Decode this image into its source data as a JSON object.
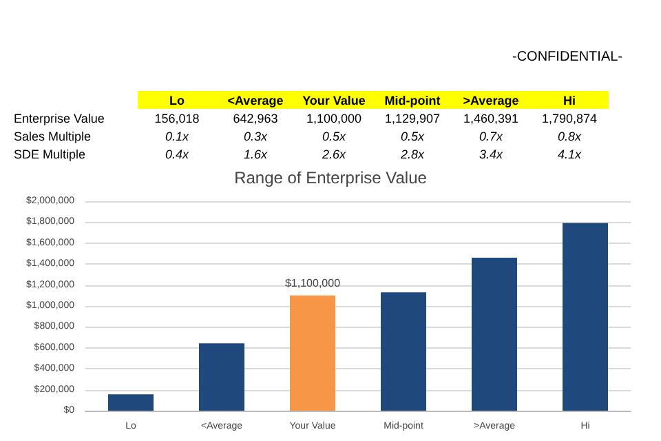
{
  "chart_data": {
    "type": "bar",
    "title": "Range of Enterprise Value",
    "categories": [
      "Lo",
      "<Average",
      "Your Value",
      "Mid-point",
      ">Average",
      "Hi"
    ],
    "values": [
      156018,
      642963,
      1100000,
      1129907,
      1460391,
      1790874
    ],
    "colors": [
      "#1f497d",
      "#1f497d",
      "#f79646",
      "#1f497d",
      "#1f497d",
      "#1f497d"
    ],
    "ylim": [
      0,
      2000000
    ],
    "yticks": [
      {
        "value": 0,
        "label": "$0"
      },
      {
        "value": 200000,
        "label": "$200,000"
      },
      {
        "value": 400000,
        "label": "$400,000"
      },
      {
        "value": 600000,
        "label": "$600,000"
      },
      {
        "value": 800000,
        "label": "$800,000"
      },
      {
        "value": 1000000,
        "label": "$1,000,000"
      },
      {
        "value": 1200000,
        "label": "$1,200,000"
      },
      {
        "value": 1400000,
        "label": "$1,400,000"
      },
      {
        "value": 1600000,
        "label": "$1,600,000"
      },
      {
        "value": 1800000,
        "label": "$1,800,000"
      },
      {
        "value": 2000000,
        "label": "$2,000,000"
      }
    ],
    "grid": "y",
    "value_labels": [
      null,
      null,
      "$1,100,000",
      null,
      null,
      null
    ],
    "annotations": [
      "-CONFIDENTIAL-",
      "Enterprise Value",
      "156,018",
      "642,963",
      "1,100,000",
      "1,129,907",
      "1,460,391",
      "1,790,874",
      "Sales Multiple",
      "0.1x",
      "0.3x",
      "0.5x",
      "0.5x",
      "0.7x",
      "0.8x",
      "SDE Multiple",
      "0.4x",
      "1.6x",
      "2.6x",
      "2.8x",
      "3.4x",
      "4.1x"
    ]
  }
}
